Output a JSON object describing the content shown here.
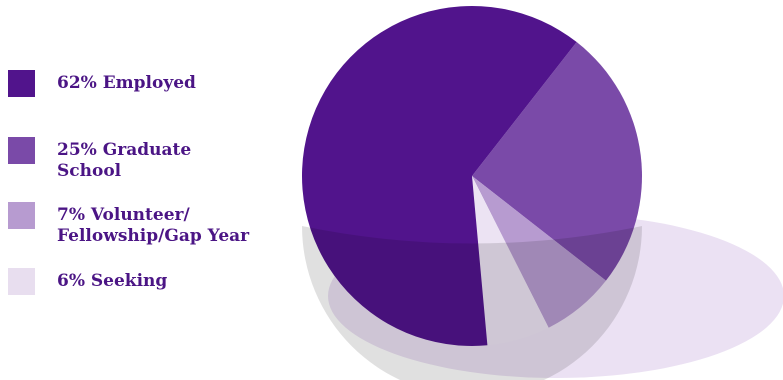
{
  "chart_data": {
    "type": "pie",
    "title": "",
    "slices": [
      {
        "label": "62% Employed",
        "value": 62,
        "color": "#51148c"
      },
      {
        "label": "25% Graduate\nSchool",
        "value": 25,
        "color": "#7a4aa8"
      },
      {
        "label": "7% Volunteer/\nFellowship/Gap Year",
        "value": 7,
        "color": "#b79bd0"
      },
      {
        "label": "6% Seeking",
        "value": 6,
        "color": "#ece3f3"
      }
    ],
    "legend_position": "left"
  },
  "colors": {
    "shadow": "#ebe1f3",
    "label_text": "#4b1585",
    "swatch_edge": "#e8deef"
  }
}
